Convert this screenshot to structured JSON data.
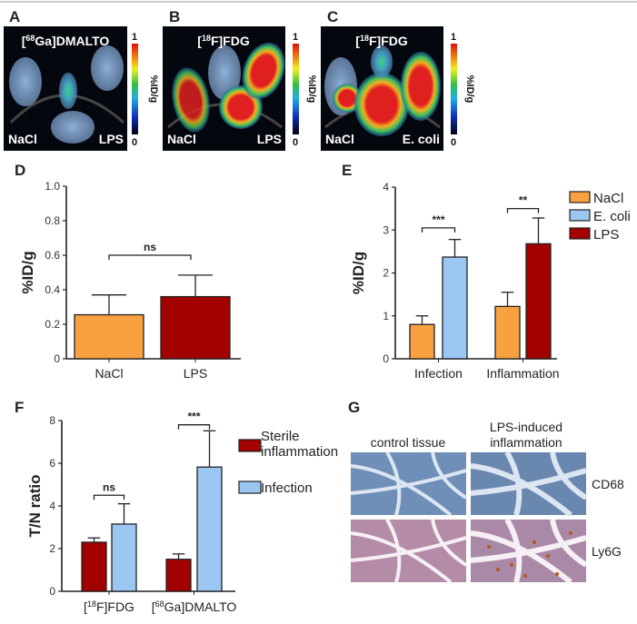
{
  "panels": {
    "A": {
      "label": "A",
      "title": {
        "pre": "[",
        "sup": "68",
        "post": "Ga]DMALTO"
      },
      "left": "NaCl",
      "right": "LPS",
      "colorbar": {
        "max": "1",
        "min": "0",
        "unit": "%ID/g"
      }
    },
    "B": {
      "label": "B",
      "title": {
        "pre": "[",
        "sup": "18",
        "post": "F]FDG"
      },
      "left": "NaCl",
      "right": "LPS",
      "colorbar": {
        "max": "1",
        "min": "0",
        "unit": "%ID/g"
      }
    },
    "C": {
      "label": "C",
      "title": {
        "pre": "[",
        "sup": "18",
        "post": "F]FDG"
      },
      "left": "NaCl",
      "right": "E. coli",
      "colorbar": {
        "max": "1",
        "min": "0",
        "unit": "%ID/g"
      }
    },
    "G": {
      "label": "G",
      "col1": "control tissue",
      "col2_line1": "LPS-induced",
      "col2_line2": "inflammation",
      "row1": "CD68",
      "row2": "Ly6G"
    }
  },
  "colors": {
    "NaCl": "#F9A040",
    "E. coli": "#9CC7F2",
    "LPS": "#A30000",
    "Sterile inflammation": "#A30000",
    "Infection": "#9CC7F2"
  },
  "chart_data": [
    {
      "panel": "D",
      "type": "bar",
      "ylabel": "%ID/g",
      "ylim": [
        0,
        1.0
      ],
      "yticks": [
        "0",
        "0.2",
        "0.4",
        "0.6",
        "0.8",
        "1.0"
      ],
      "categories": [
        "NaCl",
        "LPS"
      ],
      "values": [
        0.255,
        0.36
      ],
      "errors": [
        0.115,
        0.125
      ],
      "significance": [
        {
          "between": [
            "NaCl",
            "LPS"
          ],
          "label": "ns"
        }
      ]
    },
    {
      "panel": "E",
      "type": "bar",
      "ylabel": "%ID/g",
      "ylim": [
        0,
        4
      ],
      "yticks": [
        "0",
        "1",
        "2",
        "3",
        "4"
      ],
      "categories": [
        "Infection",
        "Inflammation"
      ],
      "legend": [
        "NaCl",
        "E. coli",
        "LPS"
      ],
      "legend_position": "top-right",
      "groups": [
        {
          "category": "Infection",
          "bars": [
            {
              "series": "NaCl",
              "value": 0.8,
              "error": 0.2
            },
            {
              "series": "E. coli",
              "value": 2.37,
              "error": 0.41
            }
          ],
          "significance": "***"
        },
        {
          "category": "Inflammation",
          "bars": [
            {
              "series": "NaCl",
              "value": 1.22,
              "error": 0.33
            },
            {
              "series": "LPS",
              "value": 2.68,
              "error": 0.6
            }
          ],
          "significance": "**"
        }
      ]
    },
    {
      "panel": "F",
      "type": "bar",
      "ylabel": "T/N ratio",
      "ylim": [
        0,
        8
      ],
      "yticks": [
        "0",
        "2",
        "4",
        "6",
        "8"
      ],
      "categories": [
        {
          "pre": "[",
          "sup": "18",
          "post": "F]FDG"
        },
        {
          "pre": "[",
          "sup": "68",
          "post": "Ga]DMALTO"
        }
      ],
      "legend": [
        {
          "series": "Sterile inflammation",
          "line1": "Sterile",
          "line2": "inflammation"
        },
        {
          "series": "Infection",
          "line1": "Infection"
        }
      ],
      "legend_position": "right",
      "groups": [
        {
          "bars": [
            {
              "series": "Sterile inflammation",
              "value": 2.3,
              "error": 0.2
            },
            {
              "series": "Infection",
              "value": 3.15,
              "error": 0.95
            }
          ],
          "significance": "ns"
        },
        {
          "bars": [
            {
              "series": "Sterile inflammation",
              "value": 1.5,
              "error": 0.25
            },
            {
              "series": "Infection",
              "value": 5.82,
              "error": 1.7
            }
          ],
          "significance": "***"
        }
      ]
    }
  ]
}
